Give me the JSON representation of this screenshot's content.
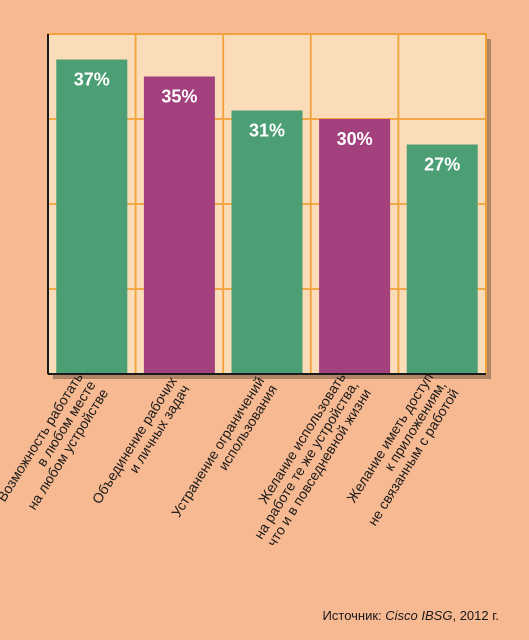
{
  "chart_data": {
    "type": "bar",
    "title": "",
    "xlabel": "",
    "ylabel": "",
    "ylim": [
      0,
      40
    ],
    "grid": true,
    "categories": [
      [
        "Возможность работать",
        "в любом месте",
        "на любом устройстве"
      ],
      [
        "Объединение рабочих",
        "и личных задач"
      ],
      [
        "Устранение ограничений",
        "использования"
      ],
      [
        "Желание использовать",
        "на работе те же устройства,",
        "что и в повседневной жизни"
      ],
      [
        "Желание иметь доступ",
        "к приложениям,",
        "не связанным с работой"
      ]
    ],
    "values": [
      37,
      35,
      31,
      30,
      27
    ],
    "value_labels": [
      "37%",
      "35%",
      "31%",
      "30%",
      "27%"
    ],
    "bar_colors": [
      "#4c9e75",
      "#a3407e",
      "#4c9e75",
      "#a3407e",
      "#4c9e75"
    ]
  },
  "colors": {
    "background": "#f7b991",
    "plot_background": "#fbdcb8",
    "grid": "#f2a23a",
    "axis": "#1a1a1a",
    "value_label": "#ffffff"
  },
  "source": {
    "prefix": "Источник: ",
    "name": "Cisco IBSG",
    "suffix": ", 2012 г."
  }
}
